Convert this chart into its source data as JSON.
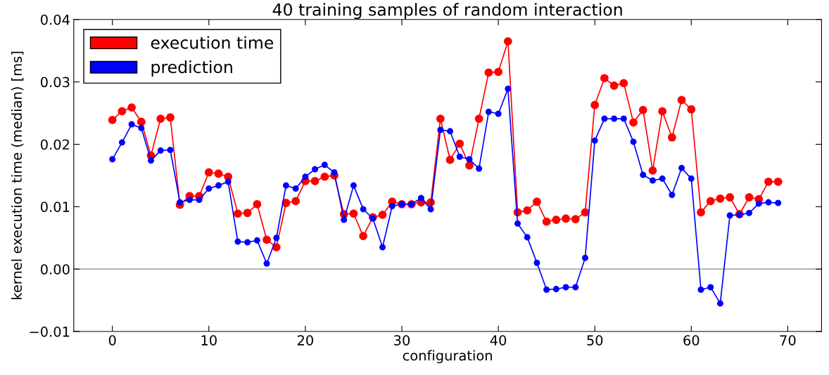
{
  "chart_data": {
    "type": "line",
    "title": "40 training samples of random interaction",
    "xlabel": "configuration",
    "ylabel": "kernel execution time (median) [ms]",
    "x": [
      0,
      1,
      2,
      3,
      4,
      5,
      6,
      7,
      8,
      9,
      10,
      11,
      12,
      13,
      14,
      15,
      16,
      17,
      18,
      19,
      20,
      21,
      22,
      23,
      24,
      25,
      26,
      27,
      28,
      29,
      30,
      31,
      32,
      33,
      34,
      35,
      36,
      37,
      38,
      39,
      40,
      41,
      42,
      43,
      44,
      45,
      46,
      47,
      48,
      49,
      50,
      51,
      52,
      53,
      54,
      55,
      56,
      57,
      58,
      59,
      60,
      61,
      62,
      63,
      64,
      65,
      66,
      67,
      68,
      69
    ],
    "series": [
      {
        "name": "execution time",
        "color": "#ff0000",
        "values": [
          0.0239,
          0.0253,
          0.0259,
          0.0236,
          0.0182,
          0.0241,
          0.0243,
          0.0103,
          0.0117,
          0.0117,
          0.0155,
          0.0153,
          0.0148,
          0.0089,
          0.009,
          0.0104,
          0.0047,
          0.0035,
          0.0106,
          0.0109,
          0.0141,
          0.0141,
          0.0148,
          0.015,
          0.0088,
          0.0089,
          0.0053,
          0.0083,
          0.0087,
          0.0108,
          0.0104,
          0.0104,
          0.0107,
          0.0107,
          0.0241,
          0.0175,
          0.0201,
          0.0166,
          0.0241,
          0.0315,
          0.0316,
          0.0365,
          0.0091,
          0.0094,
          0.0108,
          0.0076,
          0.0079,
          0.0081,
          0.008,
          0.0091,
          0.0263,
          0.0306,
          0.0294,
          0.0298,
          0.0235,
          0.0255,
          0.0158,
          0.0253,
          0.0211,
          0.0271,
          0.0256,
          0.0091,
          0.0109,
          0.0113,
          0.0115,
          0.0088,
          0.0115,
          0.0112,
          0.014,
          0.014
        ]
      },
      {
        "name": "prediction",
        "color": "#0000ff",
        "values": [
          0.0176,
          0.0203,
          0.0232,
          0.0226,
          0.0174,
          0.019,
          0.0191,
          0.0107,
          0.0111,
          0.0111,
          0.0129,
          0.0134,
          0.014,
          0.0044,
          0.0043,
          0.0046,
          0.0009,
          0.005,
          0.0134,
          0.0129,
          0.0148,
          0.016,
          0.0167,
          0.0155,
          0.0079,
          0.0134,
          0.0096,
          0.0081,
          0.0035,
          0.0101,
          0.0104,
          0.0104,
          0.0114,
          0.0096,
          0.0223,
          0.0221,
          0.018,
          0.0176,
          0.0161,
          0.0252,
          0.0249,
          0.0289,
          0.0073,
          0.0051,
          0.001,
          -0.0033,
          -0.0032,
          -0.0029,
          -0.0029,
          0.0018,
          0.0206,
          0.0241,
          0.0241,
          0.0241,
          0.0204,
          0.0151,
          0.0142,
          0.0145,
          0.0119,
          0.0162,
          0.0145,
          -0.0033,
          -0.0029,
          -0.0055,
          0.0086,
          0.0087,
          0.009,
          0.0105,
          0.0107,
          0.0106
        ]
      }
    ],
    "xlim": [
      -4,
      73.5
    ],
    "ylim": [
      -0.01,
      0.04
    ],
    "xticks": [
      0,
      10,
      20,
      30,
      40,
      50,
      60,
      70
    ],
    "yticks": [
      {
        "value": -0.01,
        "label": "−0.01"
      },
      {
        "value": 0,
        "label": "0.00"
      },
      {
        "value": 0.01,
        "label": "0.01"
      },
      {
        "value": 0.02,
        "label": "0.02"
      },
      {
        "value": 0.03,
        "label": "0.03"
      },
      {
        "value": 0.04,
        "label": "0.04"
      }
    ],
    "ref_lines": [
      {
        "axis": "y",
        "value": 0,
        "color": "#aaaaaa"
      }
    ],
    "marker": "circle",
    "line_style": "solid",
    "legend": "top left",
    "grid": false
  }
}
